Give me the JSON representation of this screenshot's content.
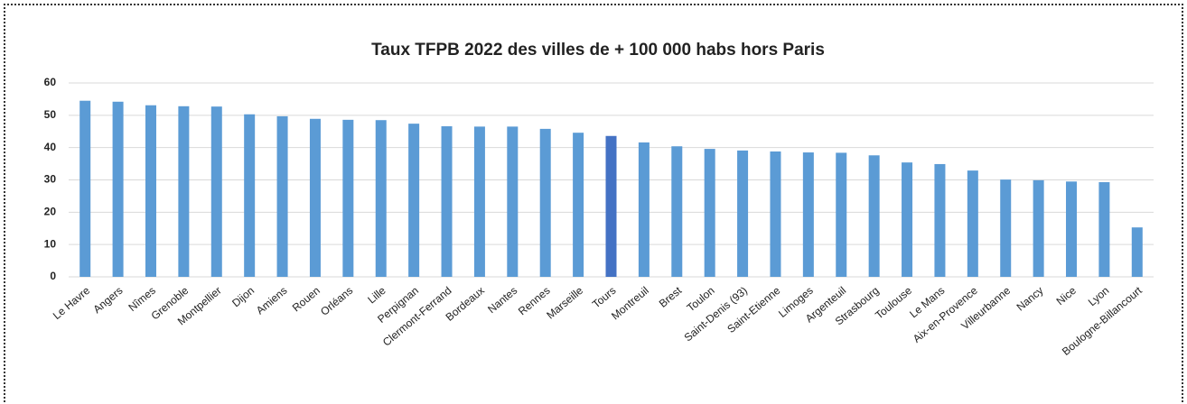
{
  "chart_data": {
    "type": "bar",
    "title": "Taux TFPB  2022 des villes de + 100 000 habs hors Paris",
    "categories": [
      "Le Havre",
      "Angers",
      "Nîmes",
      "Grenoble",
      "Montpellier",
      "Dijon",
      "Amiens",
      "Rouen",
      "Orléans",
      "Lille",
      "Perpignan",
      "Clermont-Ferrand",
      "Bordeaux",
      "Nantes",
      "Rennes",
      "Marseille",
      "Tours",
      "Montreuil",
      "Brest",
      "Toulon",
      "Saint-Denis (93)",
      "Saint-Etienne",
      "Limoges",
      "Argenteuil",
      "Strasbourg",
      "Toulouse",
      "Le Mans",
      "Aix-en-Provence",
      "Villeurbanne",
      "Nancy",
      "Nice",
      "Lyon",
      "Boulogne-Billancourt"
    ],
    "values": [
      54.5,
      54.2,
      53.1,
      52.8,
      52.7,
      50.3,
      49.7,
      48.9,
      48.6,
      48.5,
      47.4,
      46.6,
      46.5,
      46.5,
      45.8,
      44.6,
      43.6,
      41.6,
      40.4,
      39.6,
      39.1,
      38.8,
      38.5,
      38.4,
      37.6,
      35.4,
      34.9,
      32.9,
      30.1,
      29.9,
      29.5,
      29.3,
      15.3
    ],
    "color": "#5b9bd5",
    "highlight": {
      "index": 16,
      "color": "#4472c4"
    },
    "ylim": [
      0,
      60
    ],
    "yticks": [
      0,
      10,
      20,
      30,
      40,
      50,
      60
    ],
    "grid": true
  }
}
